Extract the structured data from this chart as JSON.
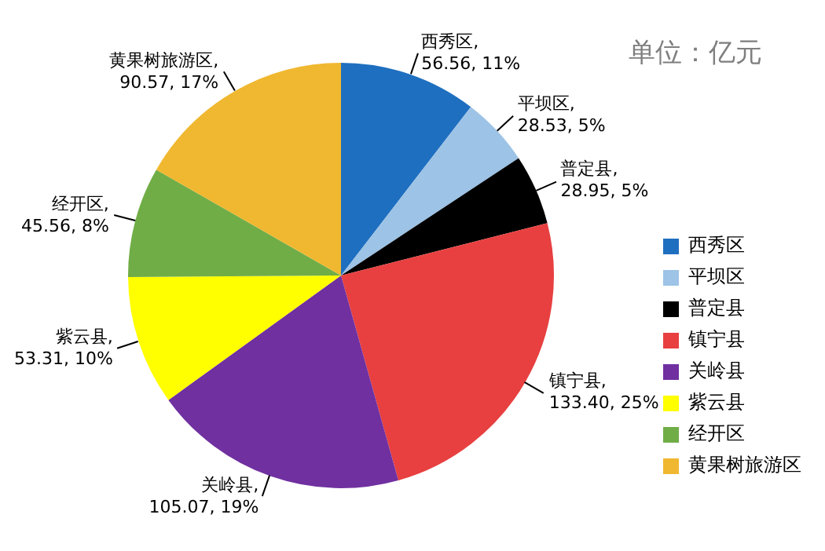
{
  "chart_data": {
    "type": "pie",
    "annotations": [
      "单位：亿元"
    ],
    "categories": [
      "西秀区",
      "平坝区",
      "普定县",
      "镇宁县",
      "关岭县",
      "紫云县",
      "经开区",
      "黄果树旅游区"
    ],
    "values": [
      56.56,
      28.53,
      28.95,
      133.4,
      105.07,
      53.31,
      45.56,
      90.57
    ],
    "value_labels": [
      "西秀区, 56.56, 11%",
      "平坝区, 28.53, 5%",
      "普定县, 28.95, 5%",
      "镇宁县, 133.40, 25%",
      "关岭县, 105.07, 19%",
      "紫云县, 53.31, 10%",
      "经开区, 45.56, 8%",
      "黄果树旅游区, 90.57, 17%"
    ],
    "colors": [
      "#1f6fc0",
      "#9dc3e6",
      "#000000",
      "#e84040",
      "#7030a0",
      "#ffff00",
      "#70ad47",
      "#f0b830"
    ],
    "legend": "bottom right"
  }
}
